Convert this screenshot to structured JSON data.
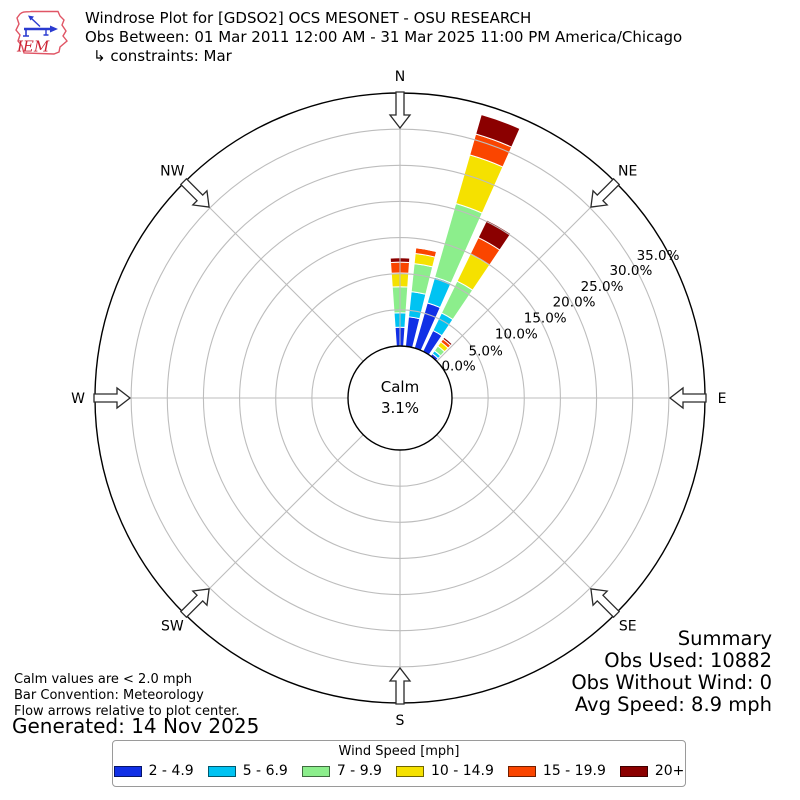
{
  "header": {
    "title": "Windrose Plot for [GDSO2] OCS MESONET - OSU RESEARCH",
    "subtitle": "Obs Between: 01 Mar 2011 12:00 AM - 31 Mar 2025 11:00 PM America/Chicago",
    "constraints": "↳ constraints: Mar",
    "logo_text": "IEM"
  },
  "chart_data": {
    "type": "windrose",
    "units_label": "Wind Speed [mph]",
    "nsector": 36,
    "sector_opening_deg": 8,
    "radial_tick_labels": [
      "0.0%",
      "5.0%",
      "10.0%",
      "15.0%",
      "20.0%",
      "25.0%",
      "30.0%",
      "35.0%"
    ],
    "radial_ticks_pct": [
      0,
      5,
      10,
      15,
      20,
      25,
      30,
      35
    ],
    "radial_max_pct": 35,
    "grid": true,
    "compass_points": [
      "N",
      "NE",
      "E",
      "SE",
      "S",
      "SW",
      "W",
      "NW"
    ],
    "calm": {
      "label": "Calm",
      "pct_label": "3.1%"
    },
    "speed_bins": [
      {
        "label": "2 - 4.9",
        "color": "#1130e6"
      },
      {
        "label": "5 - 6.9",
        "color": "#00c3f2"
      },
      {
        "label": "7 - 9.9",
        "color": "#8cee8c"
      },
      {
        "label": "10 - 14.9",
        "color": "#f5e100"
      },
      {
        "label": "15 - 19.9",
        "color": "#fa4500"
      },
      {
        "label": "20+",
        "color": "#8b0000"
      }
    ],
    "petals": [
      {
        "azimuth_deg": 0,
        "freq_pct": [
          2.6,
          2.0,
          3.6,
          1.9,
          1.5,
          0.6
        ]
      },
      {
        "azimuth_deg": 10,
        "freq_pct": [
          4.1,
          3.5,
          3.9,
          1.4,
          0.8,
          0.1
        ]
      },
      {
        "azimuth_deg": 20,
        "freq_pct": [
          6.5,
          3.7,
          10.6,
          7.0,
          3.0,
          2.8
        ]
      },
      {
        "azimuth_deg": 30,
        "freq_pct": [
          3.2,
          2.7,
          4.9,
          4.2,
          2.5,
          2.7
        ]
      },
      {
        "azimuth_deg": 40,
        "freq_pct": [
          0.4,
          0.5,
          0.8,
          0.7,
          0.5,
          0.3
        ]
      }
    ]
  },
  "summary": {
    "title": "Summary",
    "obs_used": "Obs Used: 10882",
    "obs_without_wind": "Obs Without Wind: 0",
    "avg_speed": "Avg Speed: 8.9 mph"
  },
  "footer": {
    "calm_note": "Calm values are < 2.0 mph",
    "convention_note": "Bar Convention: Meteorology",
    "arrows_note": "Flow arrows relative to plot center.",
    "generated": "Generated: 14 Nov 2025"
  }
}
